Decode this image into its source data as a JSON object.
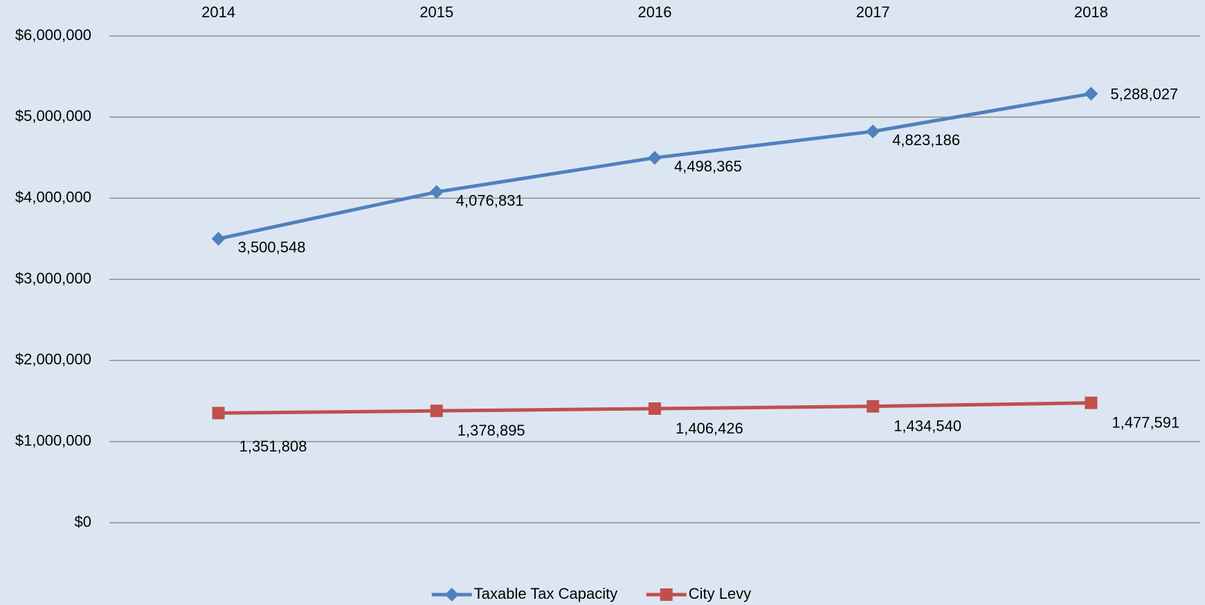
{
  "chart_data": {
    "type": "line",
    "categories": [
      "2014",
      "2015",
      "2016",
      "2017",
      "2018"
    ],
    "series": [
      {
        "name": "Taxable Tax Capacity",
        "color": "#4f81bd",
        "marker": "diamond",
        "values": [
          3500548,
          4076831,
          4498365,
          4823186,
          5288027
        ],
        "value_labels": [
          "3,500,548",
          "4,076,831",
          "4,498,365",
          "4,823,186",
          "5,288,027"
        ]
      },
      {
        "name": "City Levy",
        "color": "#c0504d",
        "marker": "square",
        "values": [
          1351808,
          1378895,
          1406426,
          1434540,
          1477591
        ],
        "value_labels": [
          "1,351,808",
          "1,378,895",
          "1,406,426",
          "1,434,540",
          "1,477,591"
        ]
      }
    ],
    "ylim": [
      0,
      6000000
    ],
    "yticks": [
      {
        "value": 0,
        "label": "$0"
      },
      {
        "value": 1000000,
        "label": "$1,000,000"
      },
      {
        "value": 2000000,
        "label": "$2,000,000"
      },
      {
        "value": 3000000,
        "label": "$3,000,000"
      },
      {
        "value": 4000000,
        "label": "$4,000,000"
      },
      {
        "value": 5000000,
        "label": "$5,000,000"
      },
      {
        "value": 6000000,
        "label": "$6,000,000"
      }
    ],
    "grid": true,
    "legend": "bottom",
    "background": "#dce6f2"
  }
}
